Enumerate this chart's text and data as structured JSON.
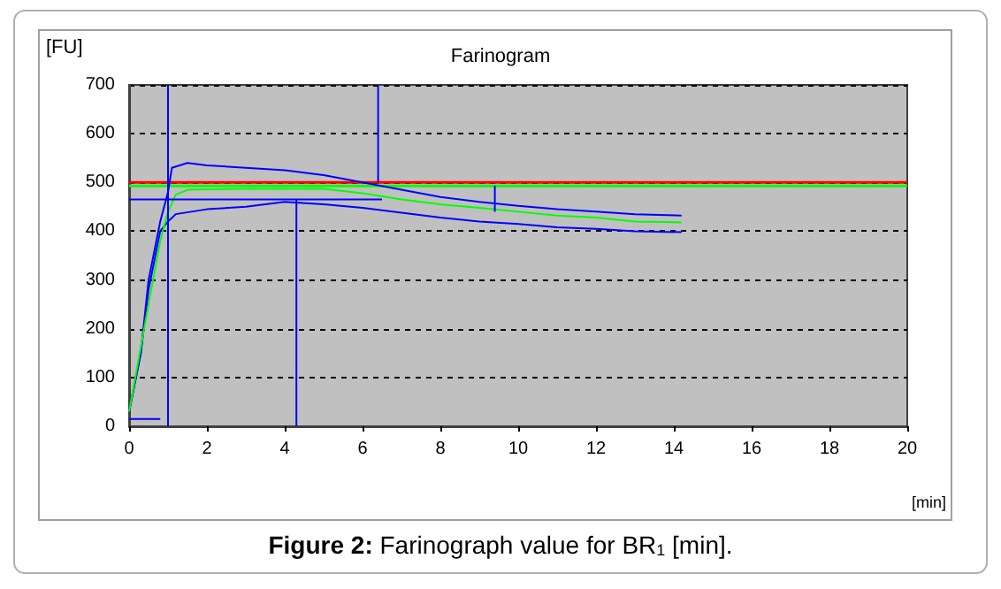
{
  "chart_data": {
    "type": "line",
    "title": "Farinogram",
    "xlabel": "[min]",
    "ylabel": "[FU]",
    "annotations": [
      "Figure 2: Farinograph value for BR$_{1}$ [min]."
    ],
    "xlim": [
      0,
      20
    ],
    "xticks": [
      0,
      2,
      4,
      6,
      8,
      10,
      12,
      14,
      16,
      18,
      20
    ],
    "ylim": [
      0,
      700
    ],
    "yticks": [
      0,
      100,
      200,
      300,
      400,
      500,
      600,
      700
    ],
    "grid": "y",
    "marker": "none",
    "line_style": "solid",
    "series": [
      {
        "color": "#0000ff",
        "x": [
          0,
          0.3,
          0.5,
          0.8,
          1.0,
          1.1,
          1.5,
          2,
          3,
          4,
          5,
          6,
          7,
          8,
          9,
          10,
          11,
          12,
          13,
          14.2
        ],
        "values": [
          30,
          150,
          300,
          420,
          480,
          530,
          540,
          535,
          530,
          525,
          515,
          500,
          485,
          470,
          460,
          452,
          445,
          440,
          435,
          432
        ]
      },
      {
        "color": "#0000ff",
        "x": [
          0,
          0.3,
          0.5,
          0.8,
          1.0,
          1.2,
          2,
          3,
          4,
          5,
          6,
          7,
          8,
          9,
          10,
          11,
          12,
          13,
          14.2
        ],
        "values": [
          30,
          150,
          280,
          400,
          420,
          435,
          445,
          450,
          460,
          455,
          448,
          438,
          428,
          420,
          415,
          408,
          405,
          400,
          398
        ]
      },
      {
        "color": "#00ff00",
        "x": [
          0,
          0.5,
          0.8,
          1.0,
          1.2,
          1.5,
          3,
          5,
          6,
          7,
          8,
          9,
          10,
          11,
          12,
          13,
          14.2
        ],
        "values": [
          30,
          250,
          380,
          440,
          475,
          485,
          487,
          487,
          478,
          465,
          455,
          448,
          440,
          432,
          428,
          420,
          418
        ]
      },
      {
        "color": "#0000ff",
        "x": [
          0,
          6.5
        ],
        "values": [
          465,
          465
        ]
      },
      {
        "color": "#0000ff",
        "x": [
          0,
          0.8
        ],
        "values": [
          15,
          15
        ]
      },
      {
        "color": "#0000ff",
        "x": [
          1.0,
          1.0
        ],
        "values": [
          0,
          700
        ]
      },
      {
        "color": "#0000ff",
        "x": [
          4.3,
          4.3
        ],
        "values": [
          0,
          465
        ]
      },
      {
        "color": "#0000ff",
        "x": [
          6.4,
          6.4
        ],
        "values": [
          500,
          700
        ]
      },
      {
        "color": "#0000ff",
        "x": [
          9.4,
          9.4
        ],
        "values": [
          440,
          493
        ]
      }
    ],
    "ref_lines": [
      {
        "axis": "y",
        "value": 493,
        "color": "#00ff00"
      },
      {
        "axis": "y",
        "value": 500,
        "color": "#ff0000"
      }
    ]
  }
}
